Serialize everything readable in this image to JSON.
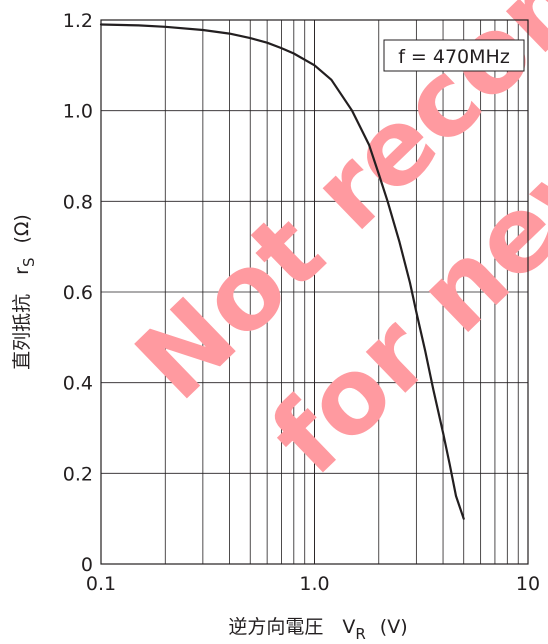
{
  "chart_data": {
    "type": "line",
    "x_scale": "log",
    "xlim": [
      0.1,
      10
    ],
    "ylim": [
      0,
      1.2
    ],
    "x_tick_labels": [
      "0.1",
      "1.0",
      "10"
    ],
    "y_tick_labels": [
      "0",
      "0.2",
      "0.4",
      "0.6",
      "0.8",
      "1.0",
      "1.2"
    ],
    "xlabel": "逆方向電圧　V",
    "xlabel_sub": "R",
    "xlabel_unit": "(V)",
    "ylabel": "直列抵抗　r",
    "ylabel_sub": "S",
    "ylabel_unit": "(Ω)",
    "grid": true,
    "annotation": "f = 470MHz",
    "series": [
      {
        "x": [
          0.1,
          0.15,
          0.2,
          0.3,
          0.4,
          0.5,
          0.6,
          0.7,
          0.8,
          1.0,
          1.2,
          1.5,
          1.8,
          2.0,
          2.2,
          2.5,
          2.8,
          3.0,
          3.3,
          3.6,
          4.0,
          4.3,
          4.6,
          5.0
        ],
        "y": [
          1.19,
          1.188,
          1.185,
          1.178,
          1.17,
          1.16,
          1.15,
          1.138,
          1.126,
          1.1,
          1.068,
          1.0,
          0.925,
          0.86,
          0.8,
          0.71,
          0.62,
          0.555,
          0.47,
          0.385,
          0.29,
          0.22,
          0.15,
          0.1
        ]
      }
    ]
  },
  "watermark": {
    "line1": "Not recommended",
    "line2": "for new design",
    "color": "#ff9aa0"
  }
}
